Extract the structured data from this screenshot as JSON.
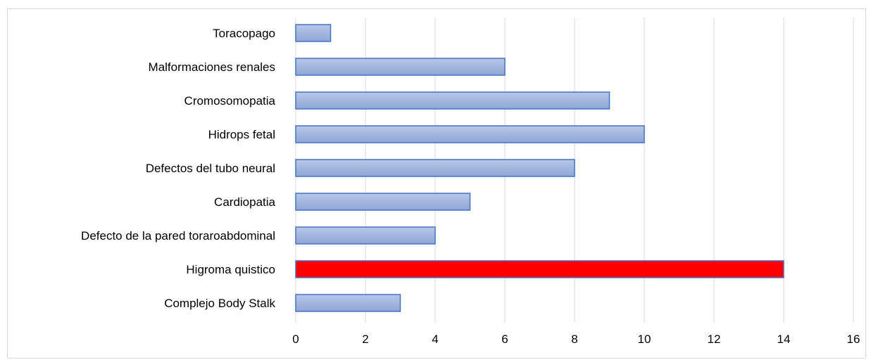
{
  "chart_data": {
    "type": "bar",
    "orientation": "horizontal",
    "title": "",
    "xlabel": "",
    "ylabel": "",
    "categories": [
      "Complejo Body Stalk",
      "Higroma quistico",
      "Defecto de la pared toraroabdominal",
      "Cardiopatia",
      "Defectos del tubo neural",
      "Hidrops fetal",
      "Cromosomopatia",
      "Malformaciones renales",
      "Toracopago"
    ],
    "values": [
      3,
      14,
      4,
      5,
      8,
      10,
      9,
      6,
      1
    ],
    "xlim": [
      0,
      16
    ],
    "xticks": [
      "0",
      "2",
      "4",
      "6",
      "8",
      "10",
      "12",
      "14",
      "16"
    ],
    "grid": "vertical",
    "legend": "none",
    "colors": {
      "default_bar_top": "#b9c7e6",
      "default_bar_bottom": "#8ea6d6",
      "default_bar_border": "#4472c4",
      "highlight_bar": "#ff0000",
      "highlight_border": "#4472c4",
      "gridline": "#d9d9d9"
    },
    "highlight_category": "Higroma quistico"
  }
}
